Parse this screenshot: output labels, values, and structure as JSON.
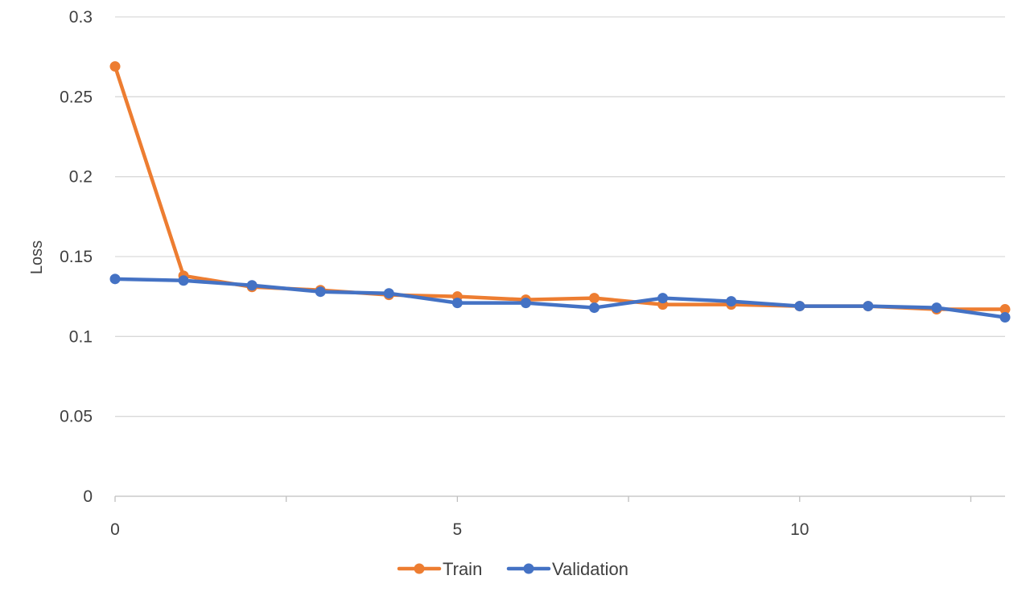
{
  "chart_data": {
    "type": "line",
    "ylabel": "Loss",
    "xlabel": "",
    "ylim": [
      0,
      0.3
    ],
    "xlim": [
      0,
      13
    ],
    "y_ticks": [
      "0",
      "0.05",
      "0.1",
      "0.15",
      "0.2",
      "0.25",
      "0.3"
    ],
    "x_ticks": [
      "0",
      "5",
      "10"
    ],
    "grid": "horizontal",
    "legend_position": "bottom",
    "x": [
      0,
      1,
      2,
      3,
      4,
      5,
      6,
      7,
      8,
      9,
      10,
      11,
      12,
      13
    ],
    "series": [
      {
        "name": "Train",
        "color": "#ED7D31",
        "values": [
          0.269,
          0.138,
          0.131,
          0.129,
          0.126,
          0.125,
          0.123,
          0.124,
          0.12,
          0.12,
          0.119,
          0.119,
          0.117,
          0.117
        ]
      },
      {
        "name": "Validation",
        "color": "#4472C4",
        "values": [
          0.136,
          0.135,
          0.132,
          0.128,
          0.127,
          0.121,
          0.121,
          0.118,
          0.124,
          0.122,
          0.119,
          0.119,
          0.118,
          0.112
        ]
      }
    ]
  }
}
